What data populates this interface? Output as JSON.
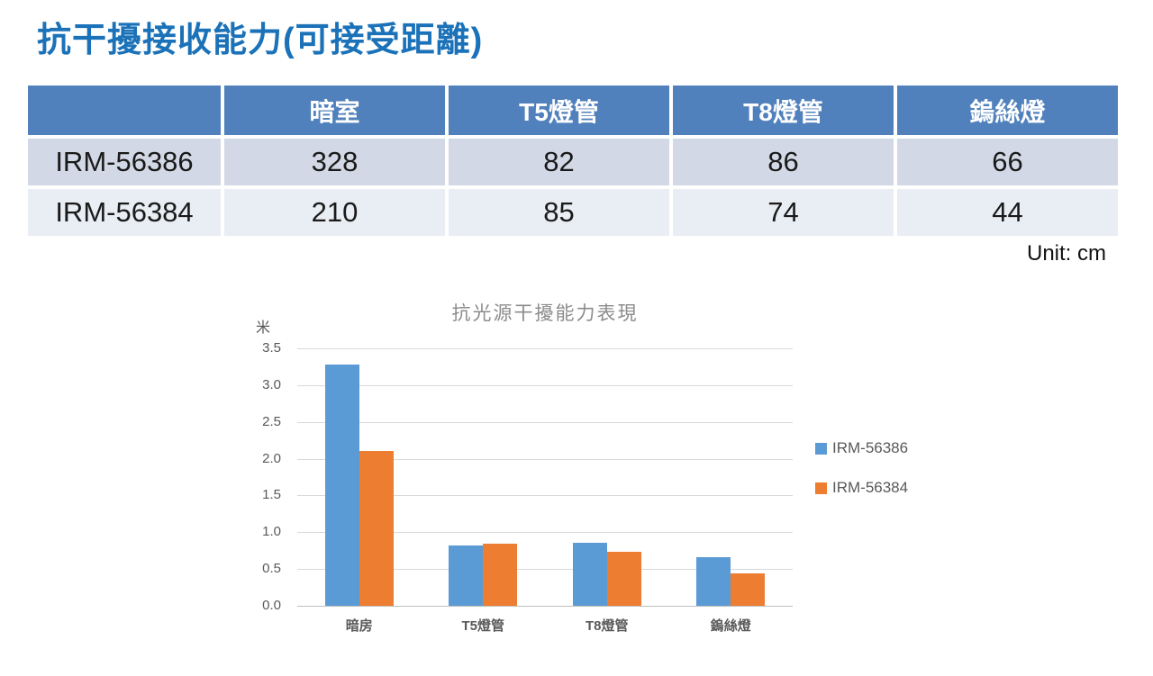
{
  "page": {
    "title": "抗干擾接收能力(可接受距離)"
  },
  "table": {
    "columns": [
      "",
      "暗室",
      "T5燈管",
      "T8燈管",
      "鎢絲燈"
    ],
    "rows": [
      {
        "model": "IRM-56386",
        "values": [
          "328",
          "82",
          "86",
          "66"
        ]
      },
      {
        "model": "IRM-56384",
        "values": [
          "210",
          "85",
          "74",
          "44"
        ]
      }
    ],
    "unit_label": "Unit: cm"
  },
  "chart_data": {
    "type": "bar",
    "title": "抗光源干擾能力表現",
    "ylabel": "米",
    "xlabel": "",
    "categories": [
      "暗房",
      "T5燈管",
      "T8燈管",
      "鎢絲燈"
    ],
    "series": [
      {
        "name": "IRM-56386",
        "color": "#5B9BD5",
        "values": [
          3.28,
          0.82,
          0.86,
          0.66
        ]
      },
      {
        "name": "IRM-56384",
        "color": "#ED7D31",
        "values": [
          2.1,
          0.85,
          0.74,
          0.44
        ]
      }
    ],
    "ylim": [
      0,
      3.5
    ],
    "ytick_step": 0.5,
    "grid": true,
    "legend_position": "right"
  },
  "colors": {
    "page_title": "#1B72B8",
    "table_header_bg": "#5181BC",
    "table_row_odd_bg": "#D2D8E5",
    "table_row_even_bg": "#E9EDF4",
    "series_blue": "#5B9BD5",
    "series_orange": "#ED7D31",
    "gridline": "#D9D9D9",
    "axis_line": "#BFBFBF",
    "axis_text": "#595959",
    "chart_title_text": "#8C8C8C"
  }
}
